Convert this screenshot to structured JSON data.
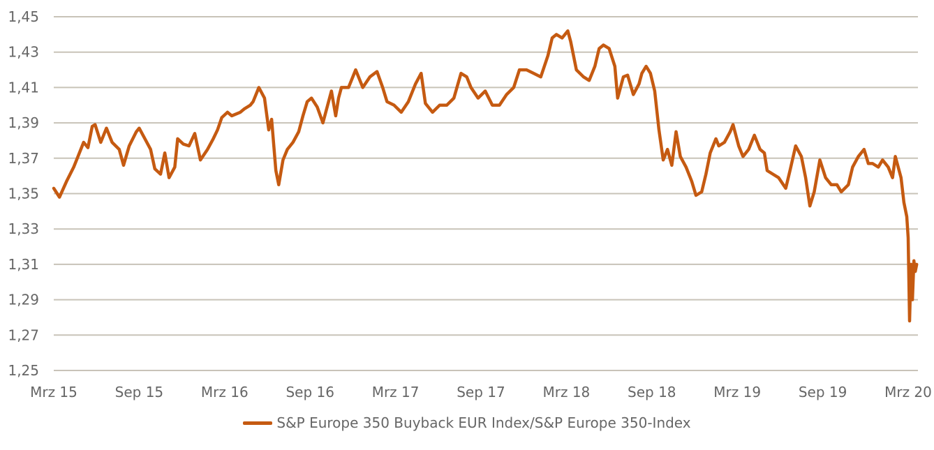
{
  "chart_data": {
    "type": "line",
    "title": "",
    "xlabel": "",
    "ylabel": "",
    "ylim": [
      1.25,
      1.45
    ],
    "yticks": [
      "1,25",
      "1,27",
      "1,29",
      "1,31",
      "1,33",
      "1,35",
      "1,37",
      "1,39",
      "1,41",
      "1,43",
      "1,45"
    ],
    "ytick_values": [
      1.25,
      1.27,
      1.29,
      1.31,
      1.33,
      1.35,
      1.37,
      1.39,
      1.41,
      1.43,
      1.45
    ],
    "xticks": [
      "Mrz 15",
      "Sep 15",
      "Mrz 16",
      "Sep 16",
      "Mrz 17",
      "Sep 17",
      "Mrz 18",
      "Sep 18",
      "Mrz 19",
      "Sep 19",
      "Mrz 20"
    ],
    "xtick_values_months_since_mar15": [
      0,
      6,
      12,
      18,
      24,
      30,
      36,
      42,
      48,
      54,
      60
    ],
    "xlim_months": [
      0,
      60.6
    ],
    "grid": true,
    "legend_position": "bottom",
    "series": [
      {
        "name": "S&P Europe 350 Buyback EUR Index/S&P Europe 350-Index",
        "color": "#c55a11",
        "x": [
          0,
          0.4,
          0.9,
          1.4,
          1.7,
          2.1,
          2.4,
          2.7,
          2.9,
          3.3,
          3.7,
          4.1,
          4.6,
          4.9,
          5.3,
          5.8,
          6.0,
          6.4,
          6.8,
          7.1,
          7.5,
          7.8,
          8.1,
          8.5,
          8.7,
          9.1,
          9.5,
          9.9,
          10.3,
          10.8,
          11.2,
          11.5,
          11.8,
          12.2,
          12.5,
          13.1,
          13.4,
          13.8,
          14.0,
          14.4,
          14.8,
          15.1,
          15.3,
          15.6,
          15.8,
          16.1,
          16.4,
          16.8,
          17.2,
          17.5,
          17.8,
          18.1,
          18.5,
          18.9,
          19.3,
          19.5,
          19.8,
          20.0,
          20.2,
          20.7,
          21.2,
          21.7,
          22.2,
          22.7,
          23.1,
          23.4,
          23.9,
          24.4,
          24.9,
          25.4,
          25.8,
          26.1,
          26.6,
          27.1,
          27.6,
          28.1,
          28.6,
          29.0,
          29.3,
          29.8,
          30.3,
          30.8,
          31.3,
          31.8,
          32.3,
          32.7,
          33.2,
          33.7,
          34.2,
          34.7,
          35.0,
          35.3,
          35.7,
          36.1,
          36.3,
          36.7,
          37.2,
          37.6,
          38.0,
          38.3,
          38.6,
          39.0,
          39.4,
          39.6,
          40.0,
          40.3,
          40.7,
          41.1,
          41.3,
          41.6,
          41.9,
          42.2,
          42.5,
          42.8,
          43.1,
          43.4,
          43.7,
          44.0,
          44.4,
          44.8,
          45.1,
          45.5,
          45.8,
          46.1,
          46.5,
          46.7,
          47.1,
          47.5,
          47.7,
          48.1,
          48.4,
          48.8,
          49.2,
          49.6,
          49.9,
          50.1,
          50.5,
          50.9,
          51.4,
          51.7,
          52.1,
          52.5,
          52.8,
          53.1,
          53.4,
          53.8,
          54.2,
          54.6,
          55.0,
          55.3,
          55.8,
          56.1,
          56.5,
          56.9,
          57.2,
          57.5,
          57.9,
          58.2,
          58.6,
          58.9,
          59.1,
          59.5,
          59.7,
          59.9,
          60.0,
          60.1,
          60.2,
          60.3,
          60.4,
          60.5,
          60.6
        ],
        "y": [
          1.353,
          1.348,
          1.357,
          1.365,
          1.371,
          1.379,
          1.376,
          1.388,
          1.389,
          1.379,
          1.387,
          1.379,
          1.375,
          1.366,
          1.377,
          1.385,
          1.387,
          1.381,
          1.375,
          1.364,
          1.361,
          1.373,
          1.359,
          1.365,
          1.381,
          1.378,
          1.377,
          1.384,
          1.369,
          1.375,
          1.381,
          1.386,
          1.393,
          1.396,
          1.394,
          1.396,
          1.398,
          1.4,
          1.402,
          1.41,
          1.404,
          1.386,
          1.392,
          1.363,
          1.355,
          1.369,
          1.375,
          1.379,
          1.385,
          1.394,
          1.402,
          1.404,
          1.399,
          1.39,
          1.402,
          1.408,
          1.394,
          1.404,
          1.41,
          1.41,
          1.42,
          1.41,
          1.416,
          1.419,
          1.41,
          1.402,
          1.4,
          1.396,
          1.402,
          1.412,
          1.418,
          1.401,
          1.396,
          1.4,
          1.4,
          1.404,
          1.418,
          1.416,
          1.41,
          1.404,
          1.408,
          1.4,
          1.4,
          1.406,
          1.41,
          1.42,
          1.42,
          1.418,
          1.416,
          1.428,
          1.438,
          1.44,
          1.438,
          1.442,
          1.436,
          1.42,
          1.416,
          1.414,
          1.422,
          1.432,
          1.434,
          1.432,
          1.422,
          1.404,
          1.416,
          1.417,
          1.406,
          1.412,
          1.418,
          1.422,
          1.418,
          1.408,
          1.386,
          1.369,
          1.375,
          1.366,
          1.385,
          1.371,
          1.365,
          1.357,
          1.349,
          1.351,
          1.361,
          1.373,
          1.381,
          1.377,
          1.379,
          1.385,
          1.389,
          1.377,
          1.371,
          1.375,
          1.383,
          1.375,
          1.373,
          1.363,
          1.361,
          1.359,
          1.353,
          1.363,
          1.377,
          1.371,
          1.359,
          1.343,
          1.351,
          1.369,
          1.359,
          1.355,
          1.355,
          1.351,
          1.355,
          1.365,
          1.371,
          1.375,
          1.367,
          1.367,
          1.365,
          1.369,
          1.365,
          1.359,
          1.371,
          1.359,
          1.345,
          1.337,
          1.325,
          1.278,
          1.31,
          1.29,
          1.312,
          1.306,
          1.31
        ]
      }
    ]
  }
}
